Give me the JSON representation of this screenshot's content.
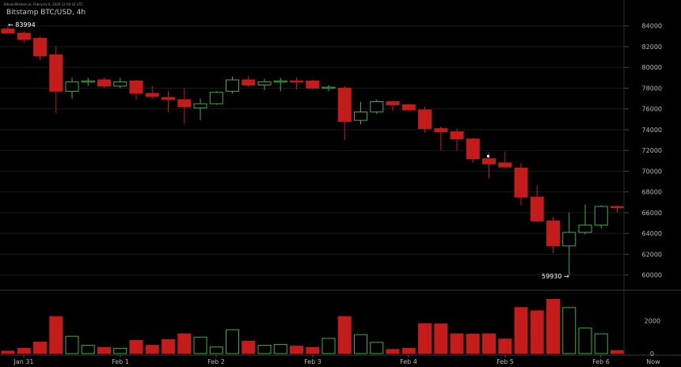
{
  "header": {
    "source_line": "BitcoinWisdom.io, February 6, 2026 12:56:42 UTC",
    "title": "Bitstamp BTC/USD, 4h"
  },
  "colors": {
    "background": "#000000",
    "up": "#3fae3f",
    "down": "#c41b1b",
    "grid": "#1a1a1a",
    "text": "#b8b8b8"
  },
  "chart_data": {
    "type": "candlestick",
    "title": "Bitstamp BTC/USD, 4h",
    "y_axis": {
      "ylim": [
        58600,
        85200
      ],
      "ticks": [
        60000,
        62000,
        64000,
        66000,
        68000,
        70000,
        72000,
        74000,
        76000,
        78000,
        80000,
        82000,
        84000
      ]
    },
    "volume_axis": {
      "ylim": [
        0,
        3800
      ],
      "ticks": [
        0,
        2000
      ]
    },
    "x_labels": [
      "Jan 31",
      "Feb 1",
      "Feb 2",
      "Feb 3",
      "Feb 4",
      "Feb 5",
      "Feb 6",
      "Now"
    ],
    "annotations": {
      "high": "← 83994",
      "low": "59930 →"
    },
    "candles": [
      {
        "o": 83700,
        "h": 83994,
        "l": 83400,
        "c": 83300,
        "v": 150
      },
      {
        "o": 83300,
        "h": 83500,
        "l": 82400,
        "c": 82700,
        "v": 320
      },
      {
        "o": 82800,
        "h": 83000,
        "l": 80700,
        "c": 81100,
        "v": 700
      },
      {
        "o": 81200,
        "h": 82000,
        "l": 75600,
        "c": 77700,
        "v": 2250
      },
      {
        "o": 77700,
        "h": 79000,
        "l": 77000,
        "c": 78600,
        "v": 1050
      },
      {
        "o": 78600,
        "h": 79000,
        "l": 78200,
        "c": 78700,
        "v": 500
      },
      {
        "o": 78800,
        "h": 79000,
        "l": 78000,
        "c": 78200,
        "v": 370
      },
      {
        "o": 78200,
        "h": 79000,
        "l": 78000,
        "c": 78600,
        "v": 320
      },
      {
        "o": 78700,
        "h": 78800,
        "l": 76900,
        "c": 77500,
        "v": 800
      },
      {
        "o": 77500,
        "h": 78200,
        "l": 77000,
        "c": 77200,
        "v": 500
      },
      {
        "o": 77100,
        "h": 77700,
        "l": 75700,
        "c": 76900,
        "v": 850
      },
      {
        "o": 76900,
        "h": 78000,
        "l": 74600,
        "c": 76200,
        "v": 1200
      },
      {
        "o": 76100,
        "h": 77000,
        "l": 74900,
        "c": 76500,
        "v": 1000
      },
      {
        "o": 76500,
        "h": 77700,
        "l": 76400,
        "c": 77600,
        "v": 400
      },
      {
        "o": 77700,
        "h": 79100,
        "l": 77500,
        "c": 78800,
        "v": 1450
      },
      {
        "o": 78800,
        "h": 79200,
        "l": 78100,
        "c": 78300,
        "v": 750
      },
      {
        "o": 78300,
        "h": 78900,
        "l": 77800,
        "c": 78600,
        "v": 500
      },
      {
        "o": 78600,
        "h": 79000,
        "l": 77700,
        "c": 78700,
        "v": 550
      },
      {
        "o": 78700,
        "h": 79000,
        "l": 77900,
        "c": 78600,
        "v": 450
      },
      {
        "o": 78700,
        "h": 78800,
        "l": 77900,
        "c": 78000,
        "v": 370
      },
      {
        "o": 78000,
        "h": 78300,
        "l": 77700,
        "c": 78100,
        "v": 920
      },
      {
        "o": 78000,
        "h": 78200,
        "l": 73000,
        "c": 74800,
        "v": 2250
      },
      {
        "o": 74900,
        "h": 76700,
        "l": 74500,
        "c": 75700,
        "v": 1150
      },
      {
        "o": 75700,
        "h": 76900,
        "l": 75500,
        "c": 76700,
        "v": 680
      },
      {
        "o": 76700,
        "h": 76800,
        "l": 75800,
        "c": 76400,
        "v": 250
      },
      {
        "o": 76400,
        "h": 76500,
        "l": 75800,
        "c": 75900,
        "v": 320
      },
      {
        "o": 75900,
        "h": 76200,
        "l": 73700,
        "c": 74100,
        "v": 1820
      },
      {
        "o": 74100,
        "h": 74300,
        "l": 72000,
        "c": 73800,
        "v": 1800
      },
      {
        "o": 73800,
        "h": 74100,
        "l": 72000,
        "c": 73100,
        "v": 1200
      },
      {
        "o": 73100,
        "h": 73200,
        "l": 70800,
        "c": 71200,
        "v": 1180
      },
      {
        "o": 71200,
        "h": 71800,
        "l": 69300,
        "c": 70700,
        "v": 1200
      },
      {
        "o": 70800,
        "h": 71900,
        "l": 70300,
        "c": 70400,
        "v": 880
      },
      {
        "o": 70300,
        "h": 70800,
        "l": 66700,
        "c": 67500,
        "v": 2800
      },
      {
        "o": 67500,
        "h": 68600,
        "l": 65100,
        "c": 65200,
        "v": 2600
      },
      {
        "o": 65200,
        "h": 65600,
        "l": 62100,
        "c": 62800,
        "v": 3300
      },
      {
        "o": 62800,
        "h": 66000,
        "l": 59930,
        "c": 64100,
        "v": 2800
      },
      {
        "o": 64100,
        "h": 66800,
        "l": 63900,
        "c": 64800,
        "v": 1550
      },
      {
        "o": 64800,
        "h": 66700,
        "l": 64500,
        "c": 66600,
        "v": 1200
      },
      {
        "o": 66600,
        "h": 66700,
        "l": 66000,
        "c": 66500,
        "v": 180
      }
    ]
  }
}
